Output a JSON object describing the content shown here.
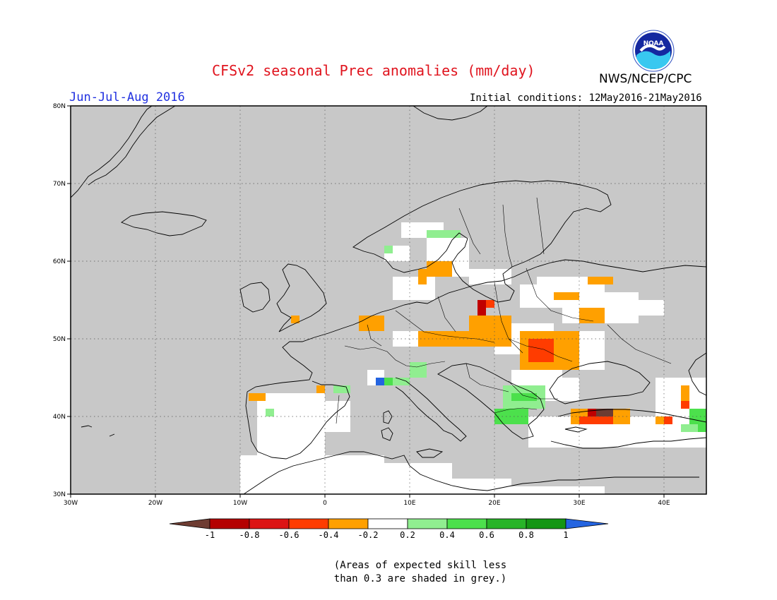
{
  "header": {
    "title": "CFSv2 seasonal Prec anomalies (mm/day)",
    "agency": "NWS/NCEP/CPC",
    "period": "Jun-Jul-Aug 2016",
    "initial_conditions": "Initial conditions: 12May2016-21May2016",
    "logo_text": "NOAA"
  },
  "map": {
    "lon_range": [
      -30,
      45
    ],
    "lat_range": [
      30,
      80
    ],
    "lon_ticks": [
      {
        "value": -30,
        "label": "30W"
      },
      {
        "value": -20,
        "label": "20W"
      },
      {
        "value": -10,
        "label": "10W"
      },
      {
        "value": 0,
        "label": "0"
      },
      {
        "value": 10,
        "label": "10E"
      },
      {
        "value": 20,
        "label": "20E"
      },
      {
        "value": 30,
        "label": "30E"
      },
      {
        "value": 40,
        "label": "40E"
      }
    ],
    "lat_ticks": [
      {
        "value": 30,
        "label": "30N"
      },
      {
        "value": 40,
        "label": "40N"
      },
      {
        "value": 50,
        "label": "50N"
      },
      {
        "value": 60,
        "label": "60N"
      },
      {
        "value": 70,
        "label": "70N"
      },
      {
        "value": 80,
        "label": "80N"
      }
    ],
    "grid": true,
    "colors": {
      "grey": "#c8c8c8",
      "white": "#ffffff",
      "lt_green": "#90ee90",
      "green": "#4ce04c",
      "orange": "#ffa000",
      "red": "#ff3c00",
      "dk_red": "#c00000",
      "brown": "#6e3c32",
      "blue": "#2464e0"
    },
    "anomaly_cells": [
      {
        "lon": [
          7,
          10
        ],
        "lat": [
          60,
          62
        ],
        "cls": "white"
      },
      {
        "lon": [
          9,
          14
        ],
        "lat": [
          63,
          65
        ],
        "cls": "white"
      },
      {
        "lon": [
          12,
          17
        ],
        "lat": [
          58,
          63
        ],
        "cls": "white"
      },
      {
        "lon": [
          8,
          13
        ],
        "lat": [
          55,
          58
        ],
        "cls": "white"
      },
      {
        "lon": [
          17,
          22
        ],
        "lat": [
          57,
          59
        ],
        "cls": "white"
      },
      {
        "lon": [
          23,
          30
        ],
        "lat": [
          54,
          57
        ],
        "cls": "white"
      },
      {
        "lon": [
          25,
          33
        ],
        "lat": [
          55,
          58
        ],
        "cls": "white"
      },
      {
        "lon": [
          28,
          37
        ],
        "lat": [
          52,
          56
        ],
        "cls": "white"
      },
      {
        "lon": [
          33,
          40
        ],
        "lat": [
          53,
          55
        ],
        "cls": "white"
      },
      {
        "lon": [
          20,
          27
        ],
        "lat": [
          48,
          52
        ],
        "cls": "white"
      },
      {
        "lon": [
          27,
          33
        ],
        "lat": [
          46,
          51
        ],
        "cls": "white"
      },
      {
        "lon": [
          8,
          20
        ],
        "lat": [
          49,
          51
        ],
        "cls": "white"
      },
      {
        "lon": [
          22,
          28
        ],
        "lat": [
          42,
          46
        ],
        "cls": "white"
      },
      {
        "lon": [
          24,
          30
        ],
        "lat": [
          36,
          40
        ],
        "cls": "white"
      },
      {
        "lon": [
          29,
          45
        ],
        "lat": [
          36,
          40
        ],
        "cls": "white"
      },
      {
        "lon": [
          39,
          45
        ],
        "lat": [
          40,
          45
        ],
        "cls": "white"
      },
      {
        "lon": [
          -8,
          0
        ],
        "lat": [
          35,
          43
        ],
        "cls": "white"
      },
      {
        "lon": [
          -2,
          3
        ],
        "lat": [
          38,
          42
        ],
        "cls": "white"
      },
      {
        "lon": [
          -10,
          7
        ],
        "lat": [
          30,
          35
        ],
        "cls": "white"
      },
      {
        "lon": [
          0,
          15
        ],
        "lat": [
          30,
          34
        ],
        "cls": "white"
      },
      {
        "lon": [
          10,
          22
        ],
        "lat": [
          30,
          32
        ],
        "cls": "white"
      },
      {
        "lon": [
          15,
          33
        ],
        "lat": [
          30,
          31
        ],
        "cls": "white"
      },
      {
        "lon": [
          24,
          30
        ],
        "lat": [
          42,
          45
        ],
        "cls": "white"
      },
      {
        "lon": [
          5,
          7
        ],
        "lat": [
          44,
          46
        ],
        "cls": "white"
      },
      {
        "lon": [
          12,
          15
        ],
        "lat": [
          58,
          60
        ],
        "cls": "orange"
      },
      {
        "lon": [
          11,
          12
        ],
        "lat": [
          57,
          59
        ],
        "cls": "orange"
      },
      {
        "lon": [
          -4,
          -3
        ],
        "lat": [
          52,
          53
        ],
        "cls": "orange"
      },
      {
        "lon": [
          4,
          7
        ],
        "lat": [
          51,
          53
        ],
        "cls": "orange"
      },
      {
        "lon": [
          11,
          20
        ],
        "lat": [
          49,
          51
        ],
        "cls": "orange"
      },
      {
        "lon": [
          17,
          22
        ],
        "lat": [
          49,
          53
        ],
        "cls": "orange"
      },
      {
        "lon": [
          27,
          30
        ],
        "lat": [
          55,
          56
        ],
        "cls": "orange"
      },
      {
        "lon": [
          30,
          33
        ],
        "lat": [
          52,
          54
        ],
        "cls": "orange"
      },
      {
        "lon": [
          31,
          34
        ],
        "lat": [
          57,
          58
        ],
        "cls": "orange"
      },
      {
        "lon": [
          23,
          30
        ],
        "lat": [
          46,
          51
        ],
        "cls": "orange"
      },
      {
        "lon": [
          -9,
          -7
        ],
        "lat": [
          42,
          43
        ],
        "cls": "orange"
      },
      {
        "lon": [
          -1,
          0
        ],
        "lat": [
          43,
          44
        ],
        "cls": "orange"
      },
      {
        "lon": [
          10,
          11
        ],
        "lat": [
          46,
          47
        ],
        "cls": "orange"
      },
      {
        "lon": [
          29,
          36
        ],
        "lat": [
          39,
          41
        ],
        "cls": "orange"
      },
      {
        "lon": [
          39,
          41
        ],
        "lat": [
          39,
          40
        ],
        "cls": "orange"
      },
      {
        "lon": [
          42,
          43
        ],
        "lat": [
          42,
          44
        ],
        "cls": "orange"
      },
      {
        "lon": [
          24,
          27
        ],
        "lat": [
          47,
          50
        ],
        "cls": "red"
      },
      {
        "lon": [
          18,
          20
        ],
        "lat": [
          54,
          55
        ],
        "cls": "red"
      },
      {
        "lon": [
          30,
          34
        ],
        "lat": [
          39,
          40
        ],
        "cls": "red"
      },
      {
        "lon": [
          40,
          41
        ],
        "lat": [
          39,
          40
        ],
        "cls": "red"
      },
      {
        "lon": [
          42,
          43
        ],
        "lat": [
          41,
          42
        ],
        "cls": "red"
      },
      {
        "lon": [
          18,
          19
        ],
        "lat": [
          53,
          55
        ],
        "cls": "dk_red"
      },
      {
        "lon": [
          31,
          32
        ],
        "lat": [
          40,
          41
        ],
        "cls": "dk_red"
      },
      {
        "lon": [
          32,
          34
        ],
        "lat": [
          40,
          41
        ],
        "cls": "brown"
      },
      {
        "lon": [
          6,
          10
        ],
        "lat": [
          44,
          45
        ],
        "cls": "lt_green"
      },
      {
        "lon": [
          10,
          12
        ],
        "lat": [
          45,
          47
        ],
        "cls": "lt_green"
      },
      {
        "lon": [
          1,
          3
        ],
        "lat": [
          43,
          44
        ],
        "cls": "lt_green"
      },
      {
        "lon": [
          -7,
          -6
        ],
        "lat": [
          40,
          41
        ],
        "cls": "lt_green"
      },
      {
        "lon": [
          12,
          16
        ],
        "lat": [
          63,
          64
        ],
        "cls": "lt_green"
      },
      {
        "lon": [
          7,
          8
        ],
        "lat": [
          61,
          62
        ],
        "cls": "lt_green"
      },
      {
        "lon": [
          21,
          26
        ],
        "lat": [
          41,
          44
        ],
        "cls": "lt_green"
      },
      {
        "lon": [
          20,
          24
        ],
        "lat": [
          39,
          41
        ],
        "cls": "green"
      },
      {
        "lon": [
          22,
          25
        ],
        "lat": [
          42,
          43
        ],
        "cls": "green"
      },
      {
        "lon": [
          7,
          8
        ],
        "lat": [
          44,
          45
        ],
        "cls": "green"
      },
      {
        "lon": [
          43,
          45
        ],
        "lat": [
          39,
          41
        ],
        "cls": "green"
      },
      {
        "lon": [
          44,
          45
        ],
        "lat": [
          38,
          40
        ],
        "cls": "green"
      },
      {
        "lon": [
          42,
          44
        ],
        "lat": [
          38,
          39
        ],
        "cls": "lt_green"
      },
      {
        "lon": [
          6,
          7
        ],
        "lat": [
          44,
          45
        ],
        "cls": "blue"
      }
    ]
  },
  "colorbar": {
    "tick_labels": [
      "-1",
      "-0.8",
      "-0.6",
      "-0.4",
      "-0.2",
      "0.2",
      "0.4",
      "0.6",
      "0.8",
      "1"
    ],
    "colors": [
      "#6e3c32",
      "#b40000",
      "#dc1414",
      "#ff3c00",
      "#ffa000",
      "#ffffff",
      "#90ee90",
      "#4ce04c",
      "#28b428",
      "#149614",
      "#2464e0"
    ]
  },
  "note": {
    "line1": "(Areas of expected skill less",
    "line2": "than 0.3 are shaded in grey.)"
  }
}
